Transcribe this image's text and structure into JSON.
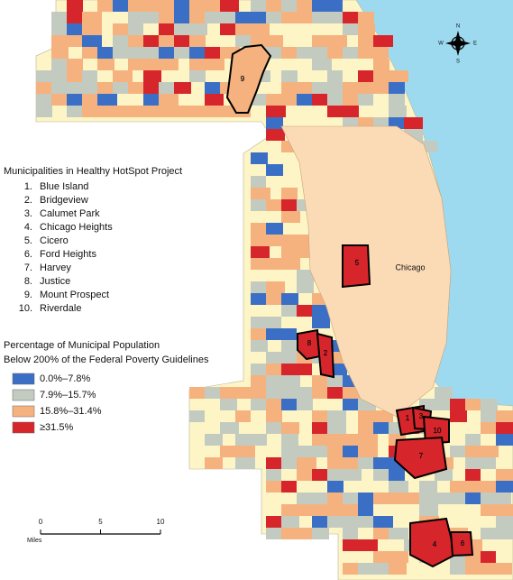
{
  "project_list": {
    "title": "Municipalities in Healthy HotSpot Project",
    "items": [
      {
        "number": "1.",
        "name": "Blue Island"
      },
      {
        "number": "2.",
        "name": "Bridgeview"
      },
      {
        "number": "3.",
        "name": "Calumet Park"
      },
      {
        "number": "4.",
        "name": "Chicago Heights"
      },
      {
        "number": "5.",
        "name": "Cicero"
      },
      {
        "number": "6.",
        "name": "Ford Heights"
      },
      {
        "number": "7.",
        "name": "Harvey"
      },
      {
        "number": "8.",
        "name": "Justice"
      },
      {
        "number": "9.",
        "name": "Mount Prospect"
      },
      {
        "number": "10.",
        "name": "Riverdale"
      }
    ]
  },
  "legend": {
    "title_lines": [
      "Percentage of Municipal Population",
      "Below 200% of the Federal Poverty Guidelines"
    ],
    "entries": [
      {
        "label": "0.0%–7.8%",
        "color": "#3b6fc6"
      },
      {
        "label": "7.9%–15.7%",
        "color": "#c3cbc1"
      },
      {
        "label": "15.8%–31.4%",
        "color": "#f5b27f"
      },
      {
        "label": "≥31.5%",
        "color": "#d7262b"
      }
    ]
  },
  "map_labels": {
    "city": "Chicago",
    "municipalities": [
      "9",
      "5",
      "8",
      "2",
      "1",
      "3",
      "10",
      "7",
      "4",
      "6"
    ]
  },
  "scale_bar": {
    "ticks": [
      "0",
      "5",
      "10"
    ],
    "unit": "Miles"
  },
  "compass": {
    "n": "N",
    "s": "S",
    "e": "E",
    "w": "W"
  }
}
